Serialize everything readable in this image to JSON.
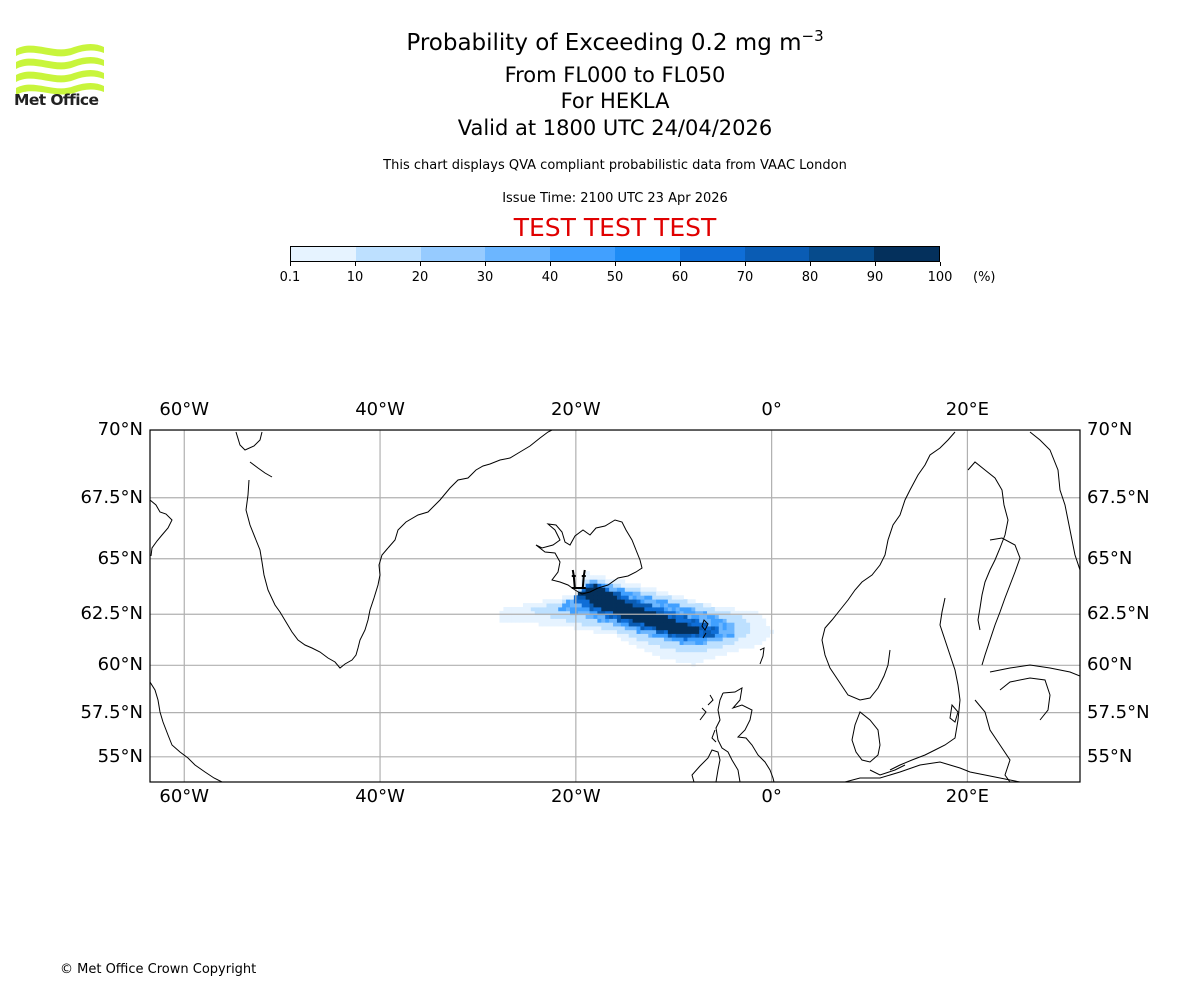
{
  "logo": {
    "name": "Met Office",
    "icon": "met-office-waves-logo",
    "color": "#c8f53c"
  },
  "header": {
    "title_main": "Probability of Exceeding 0.2 mg m",
    "title_superscript": "−3",
    "level_range": "From FL000 to FL050",
    "volcano": "For HEKLA",
    "valid_time": "Valid at 1800 UTC 24/04/2026",
    "description": "This chart displays QVA compliant probabilistic data from VAAC London",
    "issue_time": "Issue Time: 2100 UTC 23 Apr 2026",
    "test_banner": "TEST TEST TEST",
    "test_color": "#e00000"
  },
  "colorbar": {
    "unit": "(%)",
    "tick_labels": [
      "0.1",
      "10",
      "20",
      "30",
      "40",
      "50",
      "60",
      "70",
      "80",
      "90",
      "100"
    ],
    "colors": [
      "#e6f3ff",
      "#bde0ff",
      "#96cbff",
      "#6cb6ff",
      "#41a0ff",
      "#1e8cf5",
      "#0f6ed7",
      "#0a5cb4",
      "#064b8c",
      "#04305c"
    ]
  },
  "chart_data": {
    "type": "heatmap",
    "title": "Probability of Exceeding 0.2 mg m−3",
    "subtitle": [
      "From FL000 to FL050",
      "For HEKLA",
      "Valid at 1800 UTC 24/04/2026"
    ],
    "units": "%",
    "levels": [
      0.1,
      10,
      20,
      30,
      40,
      50,
      60,
      70,
      80,
      90,
      100
    ],
    "extent": {
      "lon": [
        -63.5,
        31.5
      ],
      "lat": [
        53.5,
        70
      ]
    },
    "grid": true,
    "lon_ticks": [
      -60,
      -40,
      -20,
      0,
      20
    ],
    "lon_tick_labels": [
      "60°W",
      "40°W",
      "20°W",
      "0°",
      "20°E"
    ],
    "lat_ticks": [
      70,
      67.5,
      65,
      62.5,
      60,
      57.5,
      55
    ],
    "lat_tick_labels": [
      "70°N",
      "67.5°N",
      "65°N",
      "62.5°N",
      "60°N",
      "57.5°N",
      "55°N"
    ],
    "volcano_marker": {
      "name": "HEKLA",
      "lon": -19.7,
      "lat": 63.98
    },
    "plume_bands": [
      {
        "min_prob": 0.1,
        "polygon": [
          [
            -28,
            62.7
          ],
          [
            -20,
            63.4
          ],
          [
            -19,
            64.4
          ],
          [
            -13,
            63.8
          ],
          [
            -6,
            62.9
          ],
          [
            -1.5,
            62.6
          ],
          [
            0.2,
            61.7
          ],
          [
            -1.5,
            61
          ],
          [
            -6,
            60.4
          ],
          [
            -8,
            60
          ],
          [
            -12,
            60.5
          ],
          [
            -16,
            61.5
          ],
          [
            -22,
            62
          ],
          [
            -28,
            62.1
          ]
        ]
      },
      {
        "min_prob": 10,
        "polygon": [
          [
            -25,
            62.7
          ],
          [
            -20,
            63.3
          ],
          [
            -19,
            64.2
          ],
          [
            -13,
            63.6
          ],
          [
            -6,
            62.8
          ],
          [
            -2.5,
            62.3
          ],
          [
            -2,
            61.7
          ],
          [
            -4,
            61.1
          ],
          [
            -8,
            60.6
          ],
          [
            -12,
            61
          ],
          [
            -16,
            61.7
          ],
          [
            -22,
            62.3
          ]
        ]
      },
      {
        "min_prob": 30,
        "polygon": [
          [
            -22,
            62.8
          ],
          [
            -20,
            63.4
          ],
          [
            -18.5,
            64.1
          ],
          [
            -13,
            63.4
          ],
          [
            -6,
            62.5
          ],
          [
            -3.5,
            62
          ],
          [
            -4,
            61.4
          ],
          [
            -8,
            61
          ],
          [
            -12,
            61.4
          ],
          [
            -16,
            62
          ],
          [
            -20,
            62.5
          ]
        ]
      },
      {
        "min_prob": 60,
        "polygon": [
          [
            -20.5,
            63.2
          ],
          [
            -18.5,
            64
          ],
          [
            -14,
            63.2
          ],
          [
            -7.5,
            62.2
          ],
          [
            -5,
            61.8
          ],
          [
            -6,
            61.4
          ],
          [
            -9,
            61.3
          ],
          [
            -13,
            61.8
          ],
          [
            -17,
            62.4
          ]
        ]
      },
      {
        "min_prob": 90,
        "polygon": [
          [
            -19.8,
            63.5
          ],
          [
            -18,
            63.9
          ],
          [
            -14.5,
            63
          ],
          [
            -9,
            62.1
          ],
          [
            -7,
            61.8
          ],
          [
            -8,
            61.5
          ],
          [
            -11,
            61.7
          ],
          [
            -15,
            62.3
          ],
          [
            -18,
            62.9
          ]
        ]
      }
    ]
  },
  "map": {
    "lon_labels_top": [
      "60°W",
      "40°W",
      "20°W",
      "0°",
      "20°E"
    ],
    "lon_labels_bottom": [
      "60°W",
      "40°W",
      "20°W",
      "0°",
      "20°E"
    ],
    "lat_labels_left": [
      "70°N",
      "67.5°N",
      "65°N",
      "62.5°N",
      "60°N",
      "57.5°N",
      "55°N"
    ],
    "lat_labels_right": [
      "70°N",
      "67.5°N",
      "65°N",
      "62.5°N",
      "60°N",
      "57.5°N",
      "55°N"
    ]
  },
  "footer": {
    "copyright": "© Met Office Crown Copyright"
  }
}
